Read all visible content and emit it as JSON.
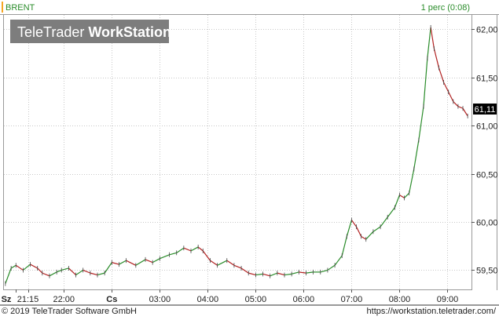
{
  "instrument": "BRENT",
  "interval_label": "1 perc (0:08)",
  "watermark": {
    "prefix": "TeleTrader ",
    "bold": "WorkStation"
  },
  "last_price_label": "61,11",
  "footer": {
    "copyright": "© 2019 TeleTrader Software GmbH",
    "url": "https://workstation.teletrader.com/"
  },
  "colors": {
    "up": "#2a8c2a",
    "down": "#b22222",
    "accent": "#f5a623",
    "grid": "#c8c8c8"
  },
  "chart_data": {
    "type": "line",
    "title": "",
    "xlabel": "",
    "ylabel": "",
    "ylim": [
      59.3,
      62.15
    ],
    "y_ticks": [
      59.5,
      60.0,
      60.5,
      61.0,
      61.5,
      62.0
    ],
    "y_tick_labels": [
      "59,50",
      "60,00",
      "60,50",
      "61,00",
      "61,50",
      "62,00"
    ],
    "x_ticks": [
      {
        "label": "Sz",
        "t": 0
      },
      {
        "label": "21:15",
        "t": 0.25
      },
      {
        "label": "22:00",
        "t": 1.0
      },
      {
        "label": "Cs",
        "t": 2.0
      },
      {
        "label": "03:00",
        "t": 3.0
      },
      {
        "label": "04:00",
        "t": 4.0
      },
      {
        "label": "05:00",
        "t": 5.0
      },
      {
        "label": "06:00",
        "t": 6.0
      },
      {
        "label": "07:00",
        "t": 7.0
      },
      {
        "label": "08:00",
        "t": 8.0
      },
      {
        "label": "09:00",
        "t": 9.0
      }
    ],
    "xlim": [
      -0.25,
      9.5
    ],
    "series": [
      {
        "points": [
          [
            -0.22,
            59.36
          ],
          [
            -0.1,
            59.52
          ],
          [
            0.0,
            59.55
          ],
          [
            0.15,
            59.5
          ],
          [
            0.3,
            59.56
          ],
          [
            0.45,
            59.52
          ],
          [
            0.55,
            59.47
          ],
          [
            0.7,
            59.44
          ],
          [
            0.85,
            59.48
          ],
          [
            0.95,
            59.5
          ],
          [
            1.1,
            59.52
          ],
          [
            1.25,
            59.45
          ],
          [
            1.4,
            59.5
          ],
          [
            1.55,
            59.47
          ],
          [
            1.7,
            59.45
          ],
          [
            1.85,
            59.47
          ],
          [
            2.0,
            59.58
          ],
          [
            2.15,
            59.56
          ],
          [
            2.3,
            59.6
          ],
          [
            2.5,
            59.55
          ],
          [
            2.7,
            59.61
          ],
          [
            2.85,
            59.58
          ],
          [
            3.0,
            59.62
          ],
          [
            3.2,
            59.66
          ],
          [
            3.35,
            59.68
          ],
          [
            3.5,
            59.73
          ],
          [
            3.65,
            59.7
          ],
          [
            3.8,
            59.74
          ],
          [
            3.9,
            59.7
          ],
          [
            4.05,
            59.6
          ],
          [
            4.2,
            59.55
          ],
          [
            4.4,
            59.6
          ],
          [
            4.55,
            59.55
          ],
          [
            4.7,
            59.52
          ],
          [
            4.85,
            59.47
          ],
          [
            5.0,
            59.45
          ],
          [
            5.15,
            59.46
          ],
          [
            5.3,
            59.44
          ],
          [
            5.45,
            59.47
          ],
          [
            5.6,
            59.45
          ],
          [
            5.75,
            59.46
          ],
          [
            5.9,
            59.48
          ],
          [
            6.05,
            59.47
          ],
          [
            6.2,
            59.48
          ],
          [
            6.35,
            59.48
          ],
          [
            6.5,
            59.5
          ],
          [
            6.65,
            59.55
          ],
          [
            6.8,
            59.65
          ],
          [
            6.9,
            59.85
          ],
          [
            7.0,
            60.02
          ],
          [
            7.1,
            59.95
          ],
          [
            7.2,
            59.85
          ],
          [
            7.3,
            59.82
          ],
          [
            7.45,
            59.9
          ],
          [
            7.6,
            59.95
          ],
          [
            7.75,
            60.05
          ],
          [
            7.9,
            60.15
          ],
          [
            8.0,
            60.28
          ],
          [
            8.1,
            60.25
          ],
          [
            8.2,
            60.3
          ],
          [
            8.3,
            60.55
          ],
          [
            8.4,
            60.85
          ],
          [
            8.5,
            61.2
          ],
          [
            8.58,
            61.7
          ],
          [
            8.65,
            62.02
          ],
          [
            8.72,
            61.8
          ],
          [
            8.82,
            61.6
          ],
          [
            8.92,
            61.45
          ],
          [
            9.02,
            61.35
          ],
          [
            9.12,
            61.25
          ],
          [
            9.22,
            61.2
          ],
          [
            9.32,
            61.18
          ],
          [
            9.42,
            61.1
          ]
        ]
      }
    ]
  }
}
